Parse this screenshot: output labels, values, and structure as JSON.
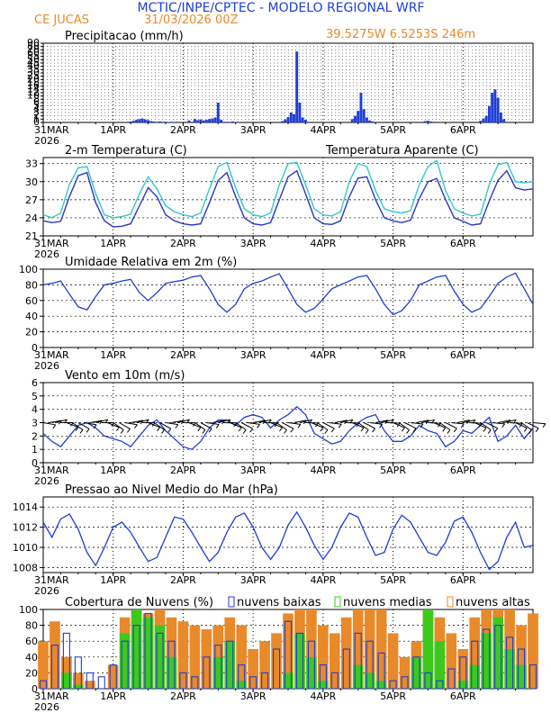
{
  "header": {
    "title": "MCTIC/INPE/CPTEC - MODELO REGIONAL WRF",
    "location": "CE JUCAS",
    "run_time": "31/03/2026 00Z",
    "coordinates": "39.5275W 6.5253S 246m"
  },
  "colors": {
    "title": "#1f3fd8",
    "orange": "#e8892a",
    "temp": "#2a36c8",
    "apparent": "#32c8c8",
    "blue_line": "#1e3ed6",
    "green": "#3ec81e",
    "black": "#000000"
  },
  "time_axis": {
    "day_labels": [
      "31MAR",
      "1APR",
      "2APR",
      "3APR",
      "4APR",
      "5APR",
      "6APR"
    ],
    "year_label": "2026",
    "total_hours": 168
  },
  "chart_data": [
    {
      "id": "precip",
      "type": "bar",
      "title": "Precipitacao (mm/h)",
      "ylabel": "mm/h",
      "yticks": [
        "0",
        "1",
        "2",
        "3",
        "4",
        "5",
        "6",
        "8",
        "10",
        "12",
        "14",
        "16",
        "18",
        "20",
        "25",
        "30",
        "35",
        "40",
        "45",
        "50",
        "55",
        "60",
        "70",
        "80",
        "90"
      ],
      "x_hours": [
        30,
        31,
        32,
        33,
        34,
        35,
        36,
        37,
        38,
        39,
        40,
        41,
        42,
        43,
        44,
        45,
        50,
        52,
        53,
        54,
        55,
        56,
        57,
        58,
        59,
        60,
        61,
        62,
        63,
        64,
        65,
        66,
        82,
        83,
        84,
        85,
        86,
        87,
        88,
        89,
        90,
        106,
        107,
        108,
        109,
        110,
        111,
        112,
        113,
        130,
        131,
        132,
        133,
        134,
        150,
        151,
        152,
        153,
        154,
        155,
        156,
        157,
        158
      ],
      "values_mm_h": [
        0.3,
        0.5,
        0.8,
        1.0,
        1.2,
        0.9,
        0.7,
        0.4,
        0.3,
        0.2,
        0.3,
        0.2,
        0.2,
        0.1,
        0.2,
        0.1,
        0.6,
        1.0,
        0.7,
        0.9,
        0.6,
        0.8,
        1.0,
        1.2,
        1.5,
        6.0,
        0.8,
        0.2,
        0.2,
        0.1,
        0.3,
        0.1,
        0.4,
        0.9,
        1.6,
        3.0,
        2.5,
        65.0,
        6.0,
        1.5,
        0.8,
        1.0,
        2.0,
        3.5,
        12.0,
        4.0,
        1.5,
        0.6,
        0.3,
        0.2,
        0.4,
        0.5,
        0.3,
        0.2,
        0.5,
        1.2,
        2.0,
        5.0,
        12.0,
        14.0,
        9.0,
        3.0,
        1.0
      ]
    },
    {
      "id": "temperature",
      "type": "line",
      "title": "2-m Temperatura (C)",
      "ylim": [
        21,
        34
      ],
      "yticks": [
        21,
        24,
        27,
        30,
        33
      ],
      "series": [
        {
          "name": "2-m Temperatura (C)",
          "color": "#2a36c8",
          "x": [
            0,
            3,
            6,
            9,
            12,
            15,
            18,
            21,
            24,
            27,
            30,
            33,
            36,
            39,
            42,
            45,
            48,
            51,
            54,
            57,
            60,
            63,
            66,
            69,
            72,
            75,
            78,
            81,
            84,
            87,
            90,
            93,
            96,
            99,
            102,
            105,
            108,
            111,
            114,
            117,
            120,
            123,
            126,
            129,
            132,
            135,
            138,
            141,
            144,
            147,
            150,
            153,
            156,
            159,
            162,
            165,
            168
          ],
          "y": [
            23.5,
            23.2,
            23.4,
            27.5,
            31.0,
            31.5,
            26.5,
            23.5,
            22.5,
            22.6,
            23.0,
            26.0,
            29.0,
            27.5,
            24.5,
            23.5,
            23.0,
            22.8,
            23.0,
            26.5,
            30.2,
            31.5,
            27.5,
            24.0,
            23.0,
            22.8,
            23.2,
            27.0,
            30.8,
            31.8,
            28.0,
            24.0,
            23.0,
            22.9,
            23.5,
            27.5,
            30.6,
            30.8,
            27.0,
            24.0,
            23.5,
            23.2,
            23.6,
            27.2,
            30.0,
            30.5,
            27.0,
            24.0,
            23.4,
            22.8,
            23.0,
            26.8,
            30.2,
            31.8,
            29.0,
            28.6,
            28.8
          ]
        },
        {
          "name": "Temperatura Aparente (C)",
          "color": "#32c8c8",
          "x": [
            0,
            3,
            6,
            9,
            12,
            15,
            18,
            21,
            24,
            27,
            30,
            33,
            36,
            39,
            42,
            45,
            48,
            51,
            54,
            57,
            60,
            63,
            66,
            69,
            72,
            75,
            78,
            81,
            84,
            87,
            90,
            93,
            96,
            99,
            102,
            105,
            108,
            111,
            114,
            117,
            120,
            123,
            126,
            129,
            132,
            135,
            138,
            141,
            144,
            147,
            150,
            153,
            156,
            159,
            162,
            165,
            168
          ],
          "y": [
            24.5,
            24.0,
            24.8,
            29.5,
            32.3,
            32.5,
            28.0,
            24.5,
            24.0,
            24.2,
            24.6,
            28.0,
            30.8,
            28.8,
            26.0,
            25.0,
            24.5,
            24.2,
            24.8,
            28.8,
            32.5,
            33.2,
            29.0,
            25.5,
            24.5,
            24.2,
            24.8,
            29.5,
            33.0,
            33.2,
            29.5,
            25.5,
            24.5,
            24.3,
            25.0,
            30.0,
            33.0,
            32.5,
            28.5,
            25.5,
            25.0,
            24.8,
            25.2,
            29.5,
            32.5,
            33.5,
            28.5,
            25.5,
            24.8,
            24.3,
            24.6,
            29.5,
            32.8,
            33.2,
            30.0,
            29.8,
            30.0
          ]
        }
      ]
    },
    {
      "id": "humidity",
      "type": "line",
      "title": "Umidade Relativa em 2m (%)",
      "ylim": [
        0,
        100
      ],
      "yticks": [
        0,
        20,
        40,
        60,
        80,
        100
      ],
      "series": [
        {
          "name": "Umidade Relativa em 2m (%)",
          "color": "#1e3ed6",
          "x": [
            0,
            3,
            6,
            9,
            12,
            15,
            18,
            21,
            24,
            27,
            30,
            33,
            36,
            39,
            42,
            45,
            48,
            51,
            54,
            57,
            60,
            63,
            66,
            69,
            72,
            75,
            78,
            81,
            84,
            87,
            90,
            93,
            96,
            99,
            102,
            105,
            108,
            111,
            114,
            117,
            120,
            123,
            126,
            129,
            132,
            135,
            138,
            141,
            144,
            147,
            150,
            153,
            156,
            159,
            162,
            165,
            168
          ],
          "y": [
            80,
            82,
            85,
            68,
            52,
            48,
            65,
            80,
            82,
            85,
            87,
            70,
            60,
            70,
            82,
            84,
            86,
            90,
            92,
            75,
            55,
            45,
            55,
            75,
            82,
            85,
            90,
            94,
            75,
            55,
            45,
            50,
            62,
            75,
            80,
            85,
            90,
            92,
            75,
            55,
            42,
            47,
            60,
            80,
            85,
            90,
            92,
            72,
            55,
            45,
            50,
            65,
            82,
            90,
            95,
            75,
            55
          ]
        }
      ]
    },
    {
      "id": "wind",
      "type": "line",
      "title": "Vento em 10m (m/s)",
      "ylim": [
        0,
        6
      ],
      "yticks": [
        0,
        1,
        2,
        3,
        4,
        5,
        6
      ],
      "series": [
        {
          "name": "Vento em 10m (m/s)",
          "color": "#1e3ed6",
          "x": [
            0,
            3,
            6,
            9,
            12,
            15,
            18,
            21,
            24,
            27,
            30,
            33,
            36,
            39,
            42,
            45,
            48,
            51,
            54,
            57,
            60,
            63,
            66,
            69,
            72,
            75,
            78,
            81,
            84,
            87,
            90,
            93,
            96,
            99,
            102,
            105,
            108,
            111,
            114,
            117,
            120,
            123,
            126,
            129,
            132,
            135,
            138,
            141,
            144,
            147,
            150,
            153,
            156,
            159,
            162,
            165,
            168
          ],
          "y": [
            2.2,
            1.6,
            1.2,
            2.0,
            2.8,
            3.0,
            2.6,
            2.0,
            1.8,
            1.6,
            1.2,
            2.0,
            2.8,
            3.2,
            2.4,
            1.8,
            1.2,
            1.0,
            1.6,
            2.6,
            3.2,
            3.2,
            2.8,
            3.4,
            3.6,
            3.4,
            2.6,
            3.2,
            3.6,
            4.2,
            3.6,
            2.2,
            1.8,
            1.4,
            1.6,
            2.4,
            3.0,
            3.4,
            3.6,
            2.4,
            1.6,
            1.6,
            2.0,
            2.8,
            2.4,
            2.2,
            1.2,
            1.6,
            2.4,
            2.2,
            2.8,
            3.4,
            1.6,
            2.0,
            2.8,
            1.8,
            2.6
          ]
        }
      ],
      "barbs": {
        "note": "wind barbs drawn along 3 m/s reference line",
        "count": 85
      }
    },
    {
      "id": "pressure",
      "type": "line",
      "title": "Pressao ao Nivel Medio do Mar (hPa)",
      "ylim": [
        1007.5,
        1015
      ],
      "yticks": [
        1008,
        1010,
        1012,
        1014
      ],
      "series": [
        {
          "name": "Pressao ao Nivel Medio do Mar (hPa)",
          "color": "#1e3ed6",
          "x": [
            0,
            3,
            6,
            9,
            12,
            15,
            18,
            21,
            24,
            27,
            30,
            33,
            36,
            39,
            42,
            45,
            48,
            51,
            54,
            57,
            60,
            63,
            66,
            69,
            72,
            75,
            78,
            81,
            84,
            87,
            90,
            93,
            96,
            99,
            102,
            105,
            108,
            111,
            114,
            117,
            120,
            123,
            126,
            129,
            132,
            135,
            138,
            141,
            144,
            147,
            150,
            153,
            156,
            159,
            162,
            165,
            168
          ],
          "y": [
            1012.5,
            1011.0,
            1012.8,
            1013.3,
            1011.8,
            1009.5,
            1008.2,
            1010.0,
            1012.0,
            1012.5,
            1011.5,
            1010.0,
            1008.6,
            1009.0,
            1011.0,
            1013.0,
            1012.8,
            1011.5,
            1010.0,
            1008.6,
            1009.5,
            1011.5,
            1013.0,
            1013.4,
            1012.0,
            1010.0,
            1008.8,
            1010.0,
            1012.2,
            1013.5,
            1012.0,
            1010.2,
            1008.8,
            1010.0,
            1012.0,
            1013.4,
            1013.0,
            1011.0,
            1009.2,
            1009.5,
            1011.8,
            1013.2,
            1012.5,
            1011.0,
            1009.5,
            1009.2,
            1010.5,
            1012.6,
            1013.0,
            1011.5,
            1009.5,
            1007.8,
            1008.6,
            1011.0,
            1012.5,
            1010.0,
            1010.2
          ]
        }
      ]
    },
    {
      "id": "clouds",
      "type": "bar",
      "title": "Cobertura de Nuvens (%)",
      "ylim": [
        0,
        100
      ],
      "yticks": [
        0,
        20,
        40,
        60,
        80,
        100
      ],
      "legend": [
        "nuvens baixas",
        "nuvens medias",
        "nuvens altas"
      ],
      "series": [
        {
          "name": "nuvens baixas",
          "color": "#1e3ed6",
          "outline": true,
          "x": [
            0,
            4,
            8,
            12,
            16,
            20,
            24,
            28,
            32,
            36,
            40,
            44,
            48,
            52,
            56,
            60,
            64,
            68,
            72,
            76,
            80,
            84,
            88,
            92,
            96,
            100,
            104,
            108,
            112,
            116,
            120,
            124,
            128,
            132,
            136,
            140,
            144,
            148,
            152,
            156,
            160,
            164,
            168
          ],
          "values": [
            10,
            55,
            70,
            40,
            20,
            15,
            30,
            60,
            80,
            95,
            70,
            60,
            20,
            15,
            40,
            55,
            60,
            30,
            15,
            20,
            50,
            85,
            70,
            60,
            30,
            20,
            50,
            70,
            60,
            45,
            10,
            15,
            40,
            20,
            10,
            25,
            40,
            60,
            75,
            80,
            65,
            50,
            30
          ]
        },
        {
          "name": "nuvens medias",
          "color": "#3ec81e",
          "x": [
            0,
            4,
            8,
            12,
            16,
            20,
            24,
            28,
            32,
            36,
            40,
            44,
            48,
            52,
            56,
            60,
            64,
            68,
            72,
            76,
            80,
            84,
            88,
            92,
            96,
            100,
            104,
            108,
            112,
            116,
            120,
            124,
            128,
            132,
            136,
            140,
            144,
            148,
            152,
            156,
            160,
            164,
            168
          ],
          "values": [
            0,
            0,
            20,
            5,
            0,
            0,
            0,
            70,
            100,
            90,
            80,
            40,
            0,
            0,
            0,
            40,
            60,
            10,
            0,
            0,
            0,
            20,
            70,
            40,
            10,
            0,
            0,
            30,
            20,
            10,
            0,
            0,
            40,
            100,
            60,
            0,
            10,
            30,
            70,
            90,
            50,
            30,
            0
          ]
        },
        {
          "name": "nuvens altas",
          "color": "#e8892a",
          "x": [
            0,
            4,
            8,
            12,
            16,
            20,
            24,
            28,
            32,
            36,
            40,
            44,
            48,
            52,
            56,
            60,
            64,
            68,
            72,
            76,
            80,
            84,
            88,
            92,
            96,
            100,
            104,
            108,
            112,
            116,
            120,
            124,
            128,
            132,
            136,
            140,
            144,
            148,
            152,
            156,
            160,
            164,
            168
          ],
          "values": [
            60,
            85,
            40,
            20,
            10,
            0,
            30,
            90,
            100,
            95,
            100,
            90,
            85,
            80,
            75,
            80,
            90,
            80,
            50,
            60,
            70,
            95,
            100,
            100,
            80,
            70,
            90,
            100,
            100,
            100,
            70,
            40,
            60,
            100,
            90,
            70,
            50,
            90,
            100,
            100,
            100,
            80,
            95
          ]
        }
      ]
    }
  ]
}
